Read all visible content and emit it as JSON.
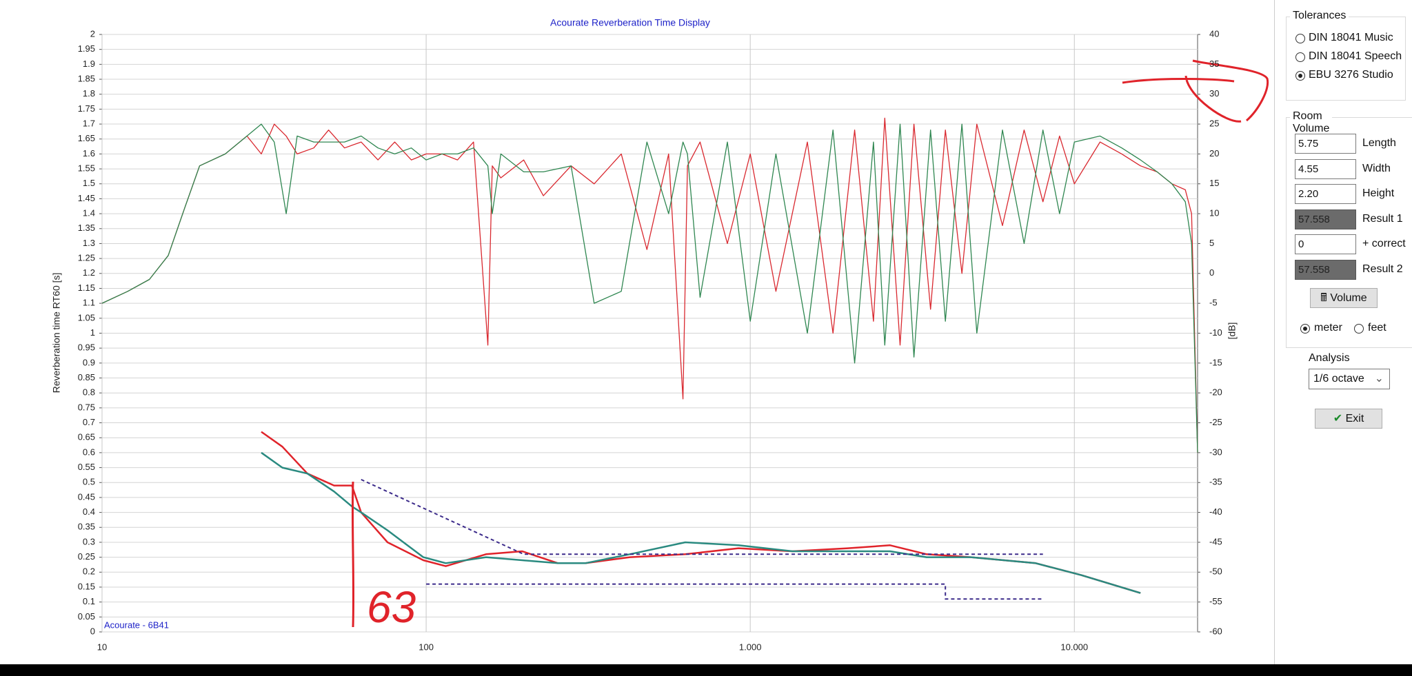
{
  "chart_data": {
    "type": "line",
    "title": "Acourate Reverberation Time Display",
    "ylabel": "Reverberation time RT60 [s]",
    "y2label": "[dB]",
    "watermark": "Acourate - 6B41",
    "annotation": "63",
    "log_x": true,
    "grid": true,
    "xlim": [
      10,
      24000
    ],
    "xticks": [
      10,
      100,
      {
        "value": 1000,
        "label": "1.000"
      },
      {
        "value": 10000,
        "label": "10.000"
      }
    ],
    "ylim": [
      0,
      2
    ],
    "yticks": [
      0,
      0.05,
      0.1,
      0.15,
      0.2,
      0.25,
      0.3,
      0.35,
      0.4,
      0.45,
      0.5,
      0.55,
      0.6,
      0.65,
      0.7,
      0.75,
      0.8,
      0.85,
      0.9,
      0.95,
      1,
      1.05,
      1.1,
      1.15,
      1.2,
      1.25,
      1.3,
      1.35,
      1.4,
      1.45,
      1.5,
      1.55,
      1.6,
      1.65,
      1.7,
      1.75,
      1.8,
      1.85,
      1.9,
      1.95,
      2
    ],
    "y2lim": [
      -60,
      40
    ],
    "y2ticks": [
      -60,
      -55,
      -50,
      -45,
      -40,
      -35,
      -30,
      -25,
      -20,
      -15,
      -10,
      -5,
      0,
      5,
      10,
      15,
      20,
      25,
      30,
      35,
      40
    ],
    "series": [
      {
        "color": "#d9282f",
        "axis": "y2",
        "x": [
          10,
          12,
          14,
          16,
          18,
          20,
          24,
          28,
          31,
          34,
          37,
          40,
          45,
          50,
          56,
          63,
          71,
          80,
          90,
          100,
          112,
          125,
          140,
          155,
          160,
          170,
          200,
          230,
          280,
          330,
          400,
          480,
          560,
          620,
          640,
          700,
          850,
          1000,
          1200,
          1500,
          1800,
          2100,
          2400,
          2600,
          2900,
          3200,
          3600,
          4000,
          4500,
          5000,
          6000,
          7000,
          8000,
          9000,
          10000,
          12000,
          14000,
          16000,
          18000,
          20000,
          22000,
          23000,
          24000
        ],
        "values": [
          -5,
          -3,
          -1,
          3,
          11,
          18,
          20,
          23,
          20,
          25,
          23,
          20,
          21,
          24,
          21,
          22,
          19,
          22,
          19,
          20,
          20,
          19,
          22,
          -12,
          18,
          16,
          19,
          13,
          18,
          15,
          20,
          4,
          20,
          -21,
          18,
          22,
          5,
          20,
          -3,
          22,
          -10,
          24,
          -8,
          26,
          -12,
          25,
          -6,
          24,
          0,
          25,
          8,
          24,
          12,
          23,
          15,
          22,
          20,
          18,
          17,
          15,
          14,
          10,
          -30
        ]
      },
      {
        "color": "#2e8650",
        "axis": "y2",
        "x": [
          10,
          12,
          14,
          16,
          18,
          20,
          24,
          28,
          31,
          34,
          37,
          40,
          45,
          50,
          56,
          63,
          71,
          80,
          90,
          100,
          112,
          125,
          140,
          155,
          160,
          170,
          200,
          230,
          280,
          330,
          400,
          480,
          560,
          620,
          640,
          700,
          850,
          1000,
          1200,
          1500,
          1800,
          2100,
          2400,
          2600,
          2900,
          3200,
          3600,
          4000,
          4500,
          5000,
          6000,
          7000,
          8000,
          9000,
          10000,
          12000,
          14000,
          16000,
          18000,
          20000,
          22000,
          23000,
          24000
        ],
        "values": [
          -5,
          -3,
          -1,
          3,
          11,
          18,
          20,
          23,
          25,
          22,
          10,
          23,
          22,
          22,
          22,
          23,
          21,
          20,
          21,
          19,
          20,
          20,
          21,
          18,
          10,
          20,
          17,
          17,
          18,
          -5,
          -3,
          22,
          10,
          22,
          20,
          -4,
          22,
          -8,
          20,
          -10,
          24,
          -15,
          22,
          -12,
          25,
          -14,
          24,
          -8,
          25,
          -10,
          24,
          5,
          24,
          10,
          22,
          23,
          21,
          19,
          17,
          15,
          12,
          5,
          -30
        ]
      },
      {
        "color": "#e0232a",
        "width": 2.5,
        "x": [
          31,
          36,
          43,
          52,
          59,
          63,
          76,
          98,
          115,
          153,
          198,
          255,
          310,
          425,
          630,
          920,
          1350,
          2000,
          2700,
          3500,
          4800,
          7600,
          10500,
          16000
        ],
        "values": [
          0.67,
          0.62,
          0.53,
          0.49,
          0.49,
          0.4,
          0.3,
          0.24,
          0.22,
          0.26,
          0.27,
          0.23,
          0.23,
          0.25,
          0.26,
          0.28,
          0.27,
          0.28,
          0.29,
          0.26,
          0.25,
          0.23,
          0.19,
          0.13
        ]
      },
      {
        "color": "#2a8a80",
        "width": 2.5,
        "x": [
          31,
          36,
          43,
          52,
          59,
          63,
          76,
          98,
          115,
          153,
          198,
          255,
          310,
          425,
          630,
          920,
          1350,
          2000,
          2700,
          3500,
          4800,
          7600,
          10500,
          16000
        ],
        "values": [
          0.6,
          0.55,
          0.53,
          0.47,
          0.42,
          0.4,
          0.34,
          0.25,
          0.23,
          0.25,
          0.24,
          0.23,
          0.23,
          0.26,
          0.3,
          0.29,
          0.27,
          0.27,
          0.27,
          0.25,
          0.25,
          0.23,
          0.19,
          0.13
        ]
      },
      {
        "color": "#3b2a8a",
        "dashed": true,
        "width": 2,
        "x": [
          63,
          200,
          8000
        ],
        "values": [
          0.51,
          0.26,
          0.26
        ]
      },
      {
        "color": "#3b2a8a",
        "dashed": true,
        "width": 2,
        "x": [
          100,
          4000,
          4000,
          8000
        ],
        "values": [
          0.16,
          0.16,
          0.11,
          0.11
        ]
      }
    ]
  },
  "panel": {
    "tolerances": {
      "title": "Tolerances",
      "options": [
        "DIN 18041 Music",
        "DIN 18041 Speech",
        "EBU 3276 Studio"
      ],
      "selected": 2
    },
    "room_volume": {
      "title": "Room Volume",
      "fields": [
        {
          "value": "5.75",
          "label": "Length"
        },
        {
          "value": "4.55",
          "label": "Width"
        },
        {
          "value": "2.20",
          "label": "Height"
        },
        {
          "value": "57.558",
          "label": "Result 1",
          "readonly": true
        },
        {
          "value": "0",
          "label": "+ correct"
        },
        {
          "value": "57.558",
          "label": "Result 2",
          "readonly": true
        }
      ],
      "button": "Volume",
      "units": [
        "meter",
        "feet"
      ],
      "selected_unit": 0
    },
    "analysis": {
      "label": "Analysis",
      "value": "1/6 octave"
    },
    "exit": "Exit"
  }
}
